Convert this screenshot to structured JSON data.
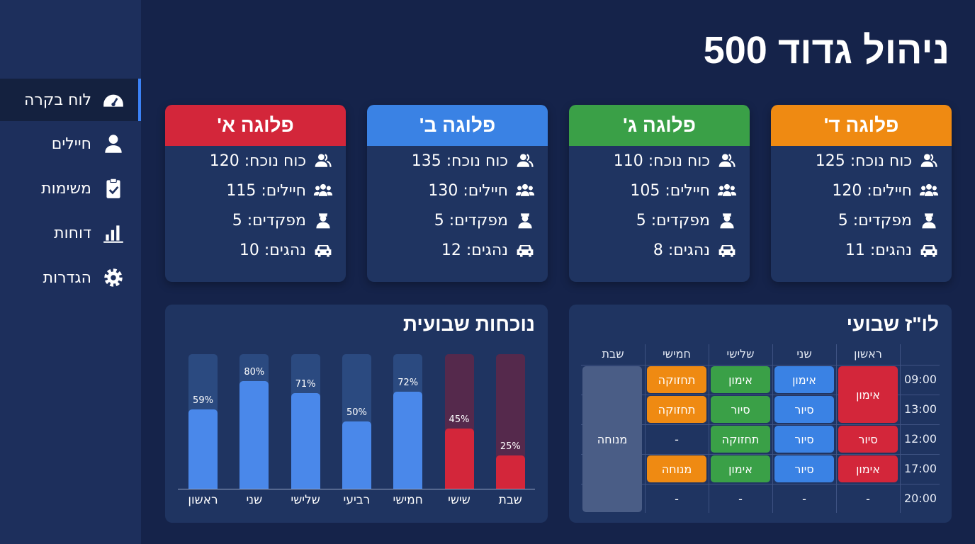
{
  "title": "ניהול גדוד 500",
  "sidebar": {
    "items": [
      {
        "label": "לוח בקרה",
        "icon": "dashboard-gauge-icon",
        "active": true
      },
      {
        "label": "חיילים",
        "icon": "user-icon"
      },
      {
        "label": "משימות",
        "icon": "clipboard-check-icon"
      },
      {
        "label": "דוחות",
        "icon": "bar-chart-icon"
      },
      {
        "label": "הגדרות",
        "icon": "gear-icon"
      }
    ]
  },
  "companies": [
    {
      "name": "פלוגה א'",
      "color": "#d3263a",
      "stats": [
        "כוח נוכח: 120",
        "חיילים: 115",
        "מפקדים: 5",
        "נהגים: 10"
      ]
    },
    {
      "name": "פלוגה ב'",
      "color": "#3a82e4",
      "stats": [
        "כוח נוכח: 135",
        "חיילים: 130",
        "מפקדים: 5",
        "נהגים: 12"
      ]
    },
    {
      "name": "פלוגה ג'",
      "color": "#3aa047",
      "stats": [
        "כוח נוכח: 110",
        "חיילים: 105",
        "מפקדים: 5",
        "נהגים: 8"
      ]
    },
    {
      "name": "פלוגה ד'",
      "color": "#ef8a12",
      "stats": [
        "כוח נוכח: 125",
        "חיילים: 120",
        "מפקדים: 5",
        "נהגים: 11"
      ]
    }
  ],
  "stat_icons": [
    "users-icon",
    "group-icon",
    "officer-icon",
    "car-icon"
  ],
  "attendance": {
    "title": "נוכחות שבועית",
    "chart_data": {
      "type": "bar",
      "categories": [
        "ראשון",
        "שני",
        "שלישי",
        "רביעי",
        "חמישי",
        "שישי",
        "שבת"
      ],
      "values": [
        59,
        80,
        71,
        50,
        72,
        45,
        25
      ],
      "value_labels": [
        "59%",
        "80%",
        "71%",
        "50%",
        "72%",
        "45%",
        "25%"
      ],
      "ylim": [
        0,
        100
      ],
      "colors": [
        "#4a88ea",
        "#4a88ea",
        "#4a88ea",
        "#4a88ea",
        "#4a88ea",
        "#d3263a",
        "#d3263a"
      ]
    }
  },
  "schedule": {
    "title": "לו\"ז שבועי",
    "days": [
      "ראשון",
      "שני",
      "שלישי",
      "חמישי",
      "שבת"
    ],
    "times": [
      "09:00",
      "13:00",
      "12:00",
      "17:00",
      "20:00"
    ],
    "cells": [
      {
        "day": 0,
        "row": 0,
        "span": 2,
        "text": "אימון",
        "color": "#d3263a"
      },
      {
        "day": 0,
        "row": 2,
        "text": "סיור",
        "color": "#d3263a"
      },
      {
        "day": 0,
        "row": 3,
        "text": "אימון",
        "color": "#d3263a"
      },
      {
        "day": 0,
        "row": 4,
        "text": "-"
      },
      {
        "day": 1,
        "row": 0,
        "text": "אימון",
        "color": "#3a82e4"
      },
      {
        "day": 1,
        "row": 1,
        "text": "סיור",
        "color": "#3a82e4"
      },
      {
        "day": 1,
        "row": 2,
        "text": "סיור",
        "color": "#3a82e4"
      },
      {
        "day": 1,
        "row": 3,
        "text": "סיור",
        "color": "#3a82e4"
      },
      {
        "day": 1,
        "row": 4,
        "text": "-"
      },
      {
        "day": 2,
        "row": 0,
        "text": "אימון",
        "color": "#3aa047"
      },
      {
        "day": 2,
        "row": 1,
        "text": "סיור",
        "color": "#3aa047"
      },
      {
        "day": 2,
        "row": 2,
        "text": "תחזוקה",
        "color": "#3aa047"
      },
      {
        "day": 2,
        "row": 3,
        "text": "אימון",
        "color": "#3aa047"
      },
      {
        "day": 2,
        "row": 4,
        "text": "-"
      },
      {
        "day": 3,
        "row": 0,
        "text": "תחזוקה",
        "color": "#ef8a12"
      },
      {
        "day": 3,
        "row": 1,
        "text": "תחזוקה",
        "color": "#ef8a12"
      },
      {
        "day": 3,
        "row": 2,
        "text": "-"
      },
      {
        "day": 3,
        "row": 3,
        "text": "מנוחה",
        "color": "#ef8a12"
      },
      {
        "day": 3,
        "row": 4,
        "text": "-"
      },
      {
        "day": 4,
        "row": 0,
        "span": 5,
        "text": "מנוחה",
        "color": "#4a5d86"
      }
    ]
  }
}
